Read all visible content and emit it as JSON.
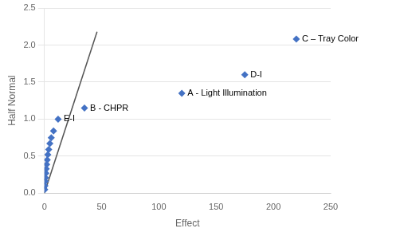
{
  "chart_data": {
    "type": "scatter",
    "title": "",
    "xlabel": "Effect",
    "ylabel": "Half Normal",
    "xlim": [
      0,
      250
    ],
    "ylim": [
      0,
      2.5
    ],
    "xticks": [
      0,
      50,
      100,
      150,
      200,
      250
    ],
    "yticks": [
      {
        "value": 0.0,
        "label": "0.0"
      },
      {
        "value": 0.5,
        "label": "0.5"
      },
      {
        "value": 1.0,
        "label": "1.0"
      },
      {
        "value": 1.5,
        "label": "1.5"
      },
      {
        "value": 2.0,
        "label": "2.0"
      },
      {
        "value": 2.5,
        "label": "2.5"
      }
    ],
    "grid": "y",
    "series": [
      {
        "type": "line",
        "color": "#555555",
        "x": [
          0,
          46
        ],
        "values": [
          0,
          2.18
        ]
      },
      {
        "type": "scatter",
        "color": "#4472c4",
        "marker": "diamond",
        "x": [
          0.3,
          0.5,
          0.8,
          1.0,
          1.3,
          1.6,
          2.0,
          2.5,
          3.0,
          3.8,
          4.8,
          6.0,
          8.0,
          12.0,
          35.0,
          120.0,
          175.0,
          220.0
        ],
        "values": [
          0.05,
          0.1,
          0.16,
          0.21,
          0.27,
          0.33,
          0.39,
          0.45,
          0.52,
          0.59,
          0.67,
          0.75,
          0.84,
          1.0,
          1.15,
          1.35,
          1.6,
          2.08
        ]
      }
    ],
    "annotations": [
      {
        "text": "E-I",
        "x": 12.0,
        "y": 1.0
      },
      {
        "text": "B - CHPR",
        "x": 35.0,
        "y": 1.15
      },
      {
        "text": "A - Light Illumination",
        "x": 120.0,
        "y": 1.35
      },
      {
        "text": "D-I",
        "x": 175.0,
        "y": 1.6
      },
      {
        "text": "C – Tray Color",
        "x": 220.0,
        "y": 2.08
      }
    ]
  }
}
